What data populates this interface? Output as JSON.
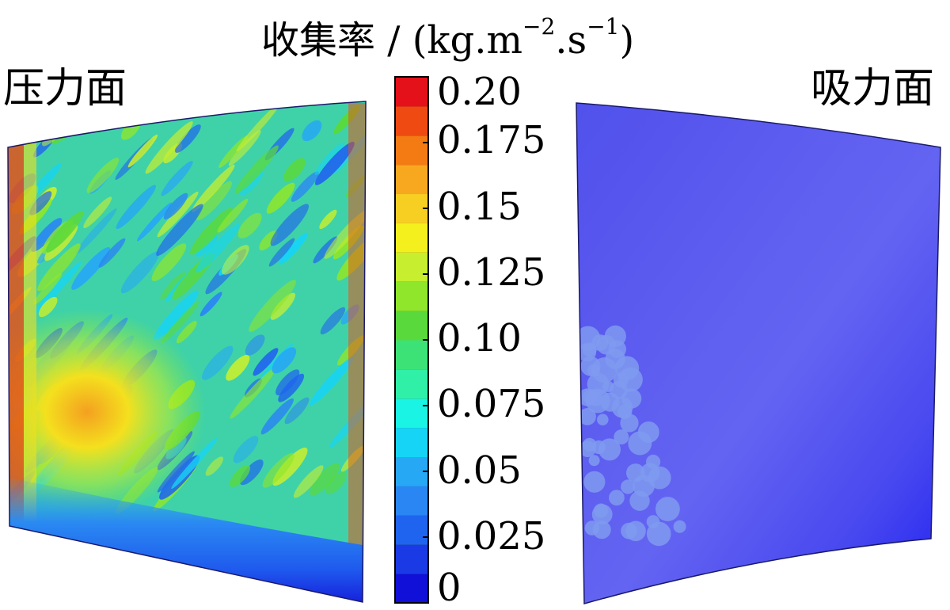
{
  "title": {
    "main": "收集率 / (kg.m",
    "exp1": "−2",
    "mid": ".s",
    "exp2": "−1",
    "end": ")"
  },
  "labels": {
    "pressure_side": "压力面",
    "suction_side": "吸力面"
  },
  "colorbar": {
    "min": 0,
    "max": 0.2,
    "levels": 16,
    "colors": [
      "#1010d8",
      "#1a3ae6",
      "#1f64ef",
      "#2a86f3",
      "#27a8f4",
      "#16d4f6",
      "#19f4e4",
      "#2ff0a6",
      "#3de276",
      "#5ad93c",
      "#8fe62a",
      "#c7ee2f",
      "#f4f01e",
      "#f7cf22",
      "#f7a81f",
      "#f47b14",
      "#ef4a12",
      "#e4101a"
    ],
    "tick_labels": [
      "0.20",
      "0.175",
      "0.15",
      "0.125",
      "0.10",
      "0.075",
      "0.05",
      "0.025",
      "0"
    ],
    "tick_values": [
      0.2,
      0.175,
      0.15,
      0.125,
      0.1,
      0.075,
      0.05,
      0.025,
      0
    ]
  },
  "surfaces": {
    "pressure_base_color": "#45d4a0",
    "suction_base_color": "#5a5af0",
    "suction_dark_color": "#2a2af0",
    "suction_spot_color": "#7f9af0"
  }
}
